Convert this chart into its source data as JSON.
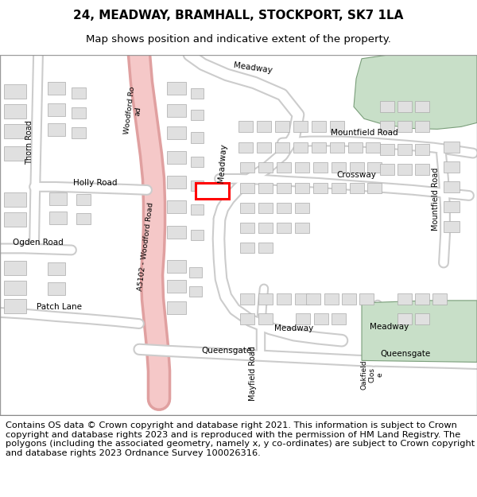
{
  "title": "24, MEADWAY, BRAMHALL, STOCKPORT, SK7 1LA",
  "subtitle": "Map shows position and indicative extent of the property.",
  "footer_text": "Contains OS data © Crown copyright and database right 2021. This information is subject to Crown copyright and database rights 2023 and is reproduced with the permission of HM Land Registry. The polygons (including the associated geometry, namely x, y co-ordinates) are subject to Crown copyright and database rights 2023 Ordnance Survey 100026316.",
  "map_bg": "#f0f0f0",
  "road_color": "#ffffff",
  "road_outline": "#cccccc",
  "a_road_color": "#f5c8c8",
  "a_road_outline": "#e0a0a0",
  "building_color": "#e0e0e0",
  "building_outline": "#aaaaaa",
  "green_area": "#c8dfc8",
  "green_outline": "#7a9e7a",
  "marker_color": "#ff0000",
  "title_fontsize": 11,
  "subtitle_fontsize": 9.5,
  "footer_fontsize": 8.2
}
